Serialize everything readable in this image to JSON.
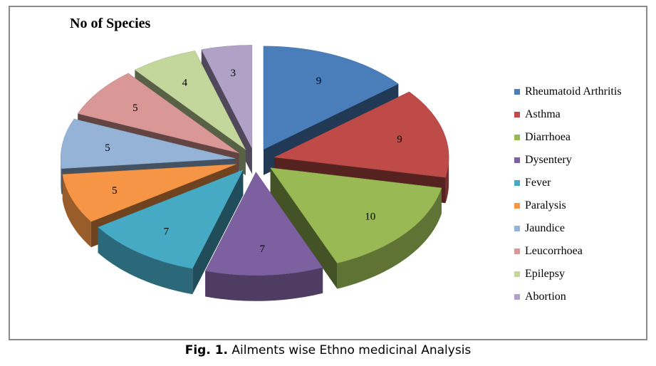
{
  "chart_data": {
    "type": "pie",
    "title": "No of Species",
    "categories": [
      "Rheumatoid Arthritis",
      "Asthma",
      "Diarrhoea",
      "Dysentery",
      "Fever",
      "Paralysis",
      "Jaundice",
      "Leucorrhoea",
      "Epilepsy",
      "Abortion"
    ],
    "values": [
      9,
      9,
      10,
      7,
      7,
      5,
      5,
      5,
      4,
      3
    ],
    "colors": [
      "#4A7EBB",
      "#BE4B48",
      "#98B954",
      "#7D60A0",
      "#46AAC5",
      "#F69545",
      "#95B3D7",
      "#D99795",
      "#C3D69B",
      "#B2A1C7"
    ],
    "style": "3d-exploded",
    "legend_position": "right"
  },
  "caption": {
    "label": "Fig. 1.",
    "text": "Ailments wise Ethno medicinal Analysis"
  }
}
